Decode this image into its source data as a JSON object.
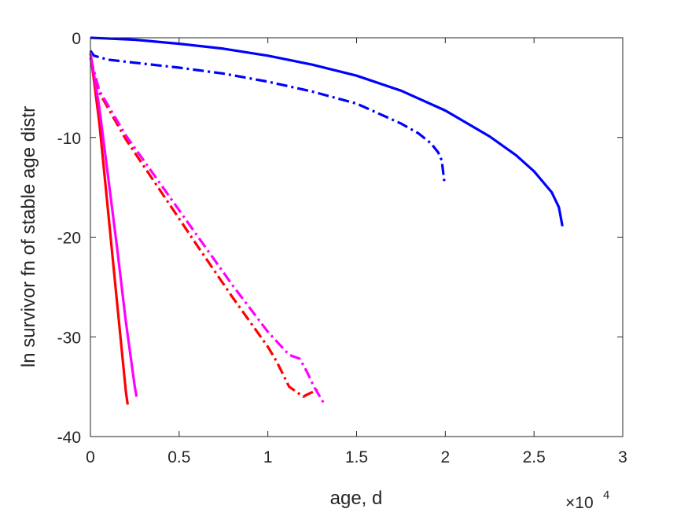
{
  "chart_data": {
    "type": "line",
    "title": "",
    "xlabel": "age, d",
    "ylabel": "ln survivor fn of stable age distr",
    "x_multiplier_base": "×10",
    "x_multiplier_exp": "4",
    "xlim": [
      0,
      3
    ],
    "ylim": [
      -40,
      0
    ],
    "x_units_note": "x in units of 10^4",
    "xticks": [
      0,
      0.5,
      1,
      1.5,
      2,
      2.5,
      3
    ],
    "xtick_labels": [
      "0",
      "0.5",
      "1",
      "1.5",
      "2",
      "2.5",
      "3"
    ],
    "yticks": [
      0,
      -10,
      -20,
      -30,
      -40
    ],
    "ytick_labels": [
      "0",
      "-10",
      "-20",
      "-30",
      "-40"
    ],
    "grid": false,
    "legend": "none",
    "series": [
      {
        "color": "#0000ff",
        "style": "solid",
        "x": [
          0,
          0.25,
          0.5,
          0.75,
          1.0,
          1.25,
          1.5,
          1.75,
          2.0,
          2.25,
          2.4,
          2.5,
          2.6,
          2.64,
          2.66
        ],
        "y": [
          0,
          -0.2,
          -0.6,
          -1.1,
          -1.8,
          -2.7,
          -3.8,
          -5.3,
          -7.3,
          -9.9,
          -11.8,
          -13.4,
          -15.5,
          -17.0,
          -18.9
        ]
      },
      {
        "color": "#0000ff",
        "style": "dashdot",
        "x": [
          0,
          0.02,
          0.1,
          0.3,
          0.5,
          0.75,
          1.0,
          1.25,
          1.5,
          1.75,
          1.85,
          1.92,
          1.96,
          1.98,
          1.995
        ],
        "y": [
          -1.3,
          -1.8,
          -2.2,
          -2.6,
          -3.0,
          -3.6,
          -4.4,
          -5.4,
          -6.6,
          -8.6,
          -9.6,
          -10.6,
          -11.5,
          -12.3,
          -14.5
        ]
      },
      {
        "color": "#ff0000",
        "style": "solid",
        "x": [
          0,
          0.05,
          0.1,
          0.15,
          0.2,
          0.21
        ],
        "y": [
          -1.5,
          -8.5,
          -17.5,
          -26.5,
          -35.5,
          -36.8
        ]
      },
      {
        "color": "#ff00ff",
        "style": "solid",
        "x": [
          0,
          0.05,
          0.1,
          0.15,
          0.2,
          0.25,
          0.26
        ],
        "y": [
          -1.5,
          -7.0,
          -14.0,
          -21.0,
          -28.5,
          -35.0,
          -36.0
        ]
      },
      {
        "color": "#ff0000",
        "style": "dashdot",
        "x": [
          0,
          0.05,
          0.2,
          0.4,
          0.6,
          0.8,
          1.0,
          1.05,
          1.12,
          1.2,
          1.22,
          1.28
        ],
        "y": [
          -2.0,
          -5.5,
          -10.2,
          -15.5,
          -20.8,
          -26.0,
          -31.0,
          -32.5,
          -35.0,
          -36.0,
          -35.8,
          -35.3
        ]
      },
      {
        "color": "#ff00ff",
        "style": "dashdot",
        "x": [
          0,
          0.05,
          0.2,
          0.4,
          0.6,
          0.8,
          1.0,
          1.12,
          1.18,
          1.22,
          1.26,
          1.32
        ],
        "y": [
          -2.0,
          -5.3,
          -9.8,
          -14.8,
          -19.8,
          -24.8,
          -29.5,
          -31.8,
          -32.2,
          -33.5,
          -35.0,
          -36.8
        ]
      }
    ]
  }
}
